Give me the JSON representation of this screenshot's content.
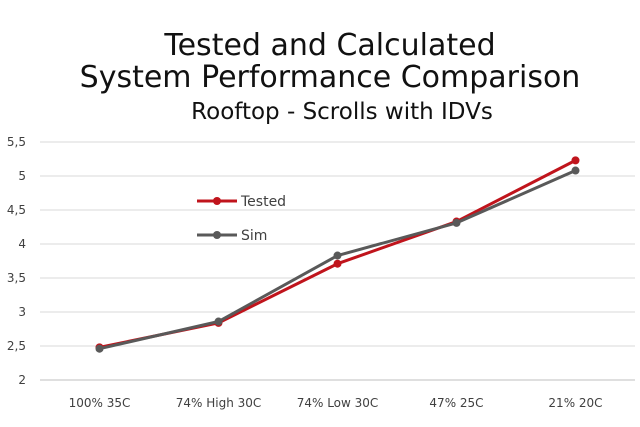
{
  "chart_data": {
    "type": "line",
    "title_lines": [
      "Tested and Calculated",
      "System Performance Comparison",
      "Rooftop - Scrolls with IDVs"
    ],
    "categories": [
      "100% 35C",
      "74% High 30C",
      "74% Low 30C",
      "47% 25C",
      "21% 20C"
    ],
    "y_ticks": [
      "2",
      "2,5",
      "3",
      "3,5",
      "4",
      "4,5",
      "5",
      "5,5"
    ],
    "ylim": [
      2,
      5.5
    ],
    "grid": true,
    "legend_position": "center-left",
    "series": [
      {
        "name": "Tested",
        "color": "#c0141c",
        "values": [
          2.48,
          2.84,
          3.71,
          4.33,
          5.23
        ]
      },
      {
        "name": "Sim",
        "color": "#595959",
        "values": [
          2.46,
          2.86,
          3.83,
          4.31,
          5.08
        ]
      }
    ]
  }
}
